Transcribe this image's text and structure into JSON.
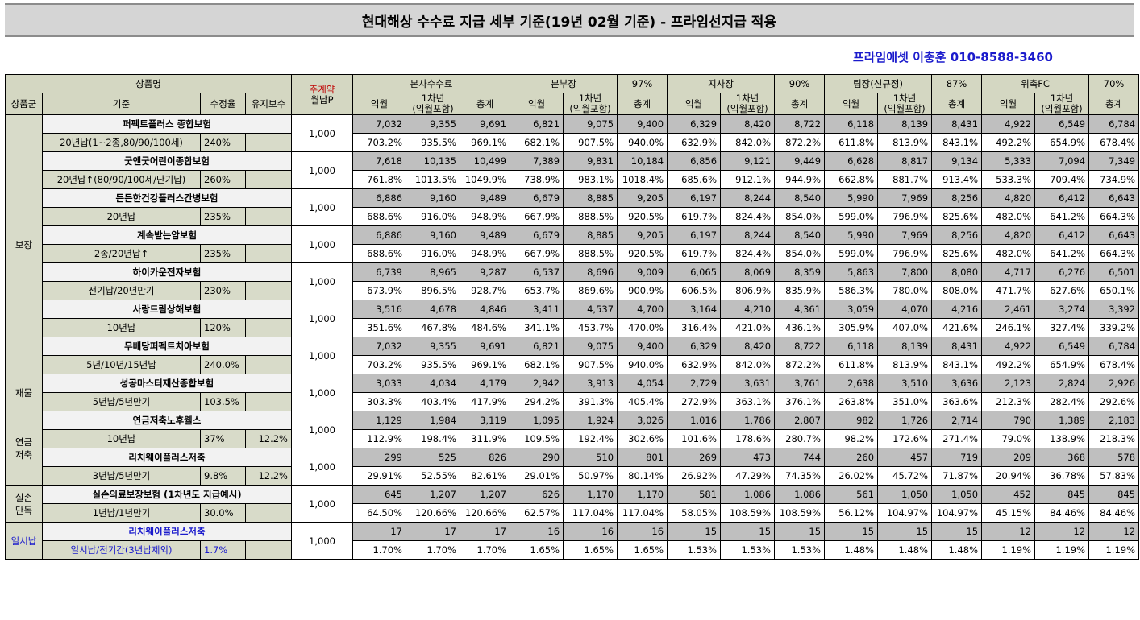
{
  "title": "현대해상 수수료 지급 세부 기준(19년 02월 기준) - 프라임선지급 적용",
  "contact": "프라임에셋 이충훈 010-8588-3460",
  "header": {
    "product_name": "상품명",
    "product_group": "상품군",
    "basis": "기준",
    "modify_rate": "수정율",
    "maintain_fee": "유지보수",
    "main_contract_line1": "주계약",
    "main_contract_line2": "월납P",
    "sections": [
      {
        "label": "본사수수료",
        "pct": ""
      },
      {
        "label": "본부장",
        "pct": "97%"
      },
      {
        "label": "지사장",
        "pct": "90%"
      },
      {
        "label": "팀장(신규정)",
        "pct": "87%"
      },
      {
        "label": "위촉FC",
        "pct": "70%"
      }
    ],
    "sub_first": "익월",
    "sub_year1_line1": "1차년",
    "sub_year1_line2": "(익월포함)",
    "sub_total": "총계"
  },
  "groups": [
    {
      "name_lines": [
        "보장"
      ],
      "blue": false,
      "products": [
        {
          "name": "퍼펙트플러스 종합보험",
          "basis": "20년납(1~2종,80/90/100세)",
          "modify": "240%",
          "maintain": "",
          "premium": "1,000",
          "amounts": [
            "7,032",
            "9,355",
            "9,691",
            "6,821",
            "9,075",
            "9,400",
            "6,329",
            "8,420",
            "8,722",
            "6,118",
            "8,139",
            "8,431",
            "4,922",
            "6,549",
            "6,784"
          ],
          "rates": [
            "703.2%",
            "935.5%",
            "969.1%",
            "682.1%",
            "907.5%",
            "940.0%",
            "632.9%",
            "842.0%",
            "872.2%",
            "611.8%",
            "813.9%",
            "843.1%",
            "492.2%",
            "654.9%",
            "678.4%"
          ]
        },
        {
          "name": "굿앤굿어린이종합보험",
          "basis": "20년납↑(80/90/100세/단기납)",
          "modify": "260%",
          "maintain": "",
          "premium": "1,000",
          "amounts": [
            "7,618",
            "10,135",
            "10,499",
            "7,389",
            "9,831",
            "10,184",
            "6,856",
            "9,121",
            "9,449",
            "6,628",
            "8,817",
            "9,134",
            "5,333",
            "7,094",
            "7,349"
          ],
          "rates": [
            "761.8%",
            "1013.5%",
            "1049.9%",
            "738.9%",
            "983.1%",
            "1018.4%",
            "685.6%",
            "912.1%",
            "944.9%",
            "662.8%",
            "881.7%",
            "913.4%",
            "533.3%",
            "709.4%",
            "734.9%"
          ]
        },
        {
          "name": "든든한건강플러스간병보험",
          "basis": "20년납",
          "modify": "235%",
          "maintain": "",
          "premium": "1,000",
          "amounts": [
            "6,886",
            "9,160",
            "9,489",
            "6,679",
            "8,885",
            "9,205",
            "6,197",
            "8,244",
            "8,540",
            "5,990",
            "7,969",
            "8,256",
            "4,820",
            "6,412",
            "6,643"
          ],
          "rates": [
            "688.6%",
            "916.0%",
            "948.9%",
            "667.9%",
            "888.5%",
            "920.5%",
            "619.7%",
            "824.4%",
            "854.0%",
            "599.0%",
            "796.9%",
            "825.6%",
            "482.0%",
            "641.2%",
            "664.3%"
          ]
        },
        {
          "name": "계속받는암보험",
          "basis": "2종/20년납↑",
          "modify": "235%",
          "maintain": "",
          "premium": "1,000",
          "amounts": [
            "6,886",
            "9,160",
            "9,489",
            "6,679",
            "8,885",
            "9,205",
            "6,197",
            "8,244",
            "8,540",
            "5,990",
            "7,969",
            "8,256",
            "4,820",
            "6,412",
            "6,643"
          ],
          "rates": [
            "688.6%",
            "916.0%",
            "948.9%",
            "667.9%",
            "888.5%",
            "920.5%",
            "619.7%",
            "824.4%",
            "854.0%",
            "599.0%",
            "796.9%",
            "825.6%",
            "482.0%",
            "641.2%",
            "664.3%"
          ]
        },
        {
          "name": "하이카운전자보험",
          "basis": "전기납/20년만기",
          "modify": "230%",
          "maintain": "",
          "premium": "1,000",
          "amounts": [
            "6,739",
            "8,965",
            "9,287",
            "6,537",
            "8,696",
            "9,009",
            "6,065",
            "8,069",
            "8,359",
            "5,863",
            "7,800",
            "8,080",
            "4,717",
            "6,276",
            "6,501"
          ],
          "rates": [
            "673.9%",
            "896.5%",
            "928.7%",
            "653.7%",
            "869.6%",
            "900.9%",
            "606.5%",
            "806.9%",
            "835.9%",
            "586.3%",
            "780.0%",
            "808.0%",
            "471.7%",
            "627.6%",
            "650.1%"
          ]
        },
        {
          "name": "사랑드림상해보험",
          "basis": "10년납",
          "modify": "120%",
          "maintain": "",
          "premium": "1,000",
          "amounts": [
            "3,516",
            "4,678",
            "4,846",
            "3,411",
            "4,537",
            "4,700",
            "3,164",
            "4,210",
            "4,361",
            "3,059",
            "4,070",
            "4,216",
            "2,461",
            "3,274",
            "3,392"
          ],
          "rates": [
            "351.6%",
            "467.8%",
            "484.6%",
            "341.1%",
            "453.7%",
            "470.0%",
            "316.4%",
            "421.0%",
            "436.1%",
            "305.9%",
            "407.0%",
            "421.6%",
            "246.1%",
            "327.4%",
            "339.2%"
          ]
        },
        {
          "name": "무배당퍼펙트치아보험",
          "basis": "5년/10년/15년납",
          "modify": "240.0%",
          "maintain": "",
          "premium": "1,000",
          "amounts": [
            "7,032",
            "9,355",
            "9,691",
            "6,821",
            "9,075",
            "9,400",
            "6,329",
            "8,420",
            "8,722",
            "6,118",
            "8,139",
            "8,431",
            "4,922",
            "6,549",
            "6,784"
          ],
          "rates": [
            "703.2%",
            "935.5%",
            "969.1%",
            "682.1%",
            "907.5%",
            "940.0%",
            "632.9%",
            "842.0%",
            "872.2%",
            "611.8%",
            "813.9%",
            "843.1%",
            "492.2%",
            "654.9%",
            "678.4%"
          ]
        }
      ]
    },
    {
      "name_lines": [
        "재물"
      ],
      "blue": false,
      "products": [
        {
          "name": "성공마스터재산종합보험",
          "basis": "5년납/5년만기",
          "modify": "103.5%",
          "maintain": "",
          "premium": "1,000",
          "amounts": [
            "3,033",
            "4,034",
            "4,179",
            "2,942",
            "3,913",
            "4,054",
            "2,729",
            "3,631",
            "3,761",
            "2,638",
            "3,510",
            "3,636",
            "2,123",
            "2,824",
            "2,926"
          ],
          "rates": [
            "303.3%",
            "403.4%",
            "417.9%",
            "294.2%",
            "391.3%",
            "405.4%",
            "272.9%",
            "363.1%",
            "376.1%",
            "263.8%",
            "351.0%",
            "363.6%",
            "212.3%",
            "282.4%",
            "292.6%"
          ]
        }
      ]
    },
    {
      "name_lines": [
        "연금",
        "저축"
      ],
      "blue": false,
      "products": [
        {
          "name": "연금저축노후웰스",
          "basis": "10년납",
          "modify": "37%",
          "maintain": "12.2%",
          "premium": "1,000",
          "amounts": [
            "1,129",
            "1,984",
            "3,119",
            "1,095",
            "1,924",
            "3,026",
            "1,016",
            "1,786",
            "2,807",
            "982",
            "1,726",
            "2,714",
            "790",
            "1,389",
            "2,183"
          ],
          "rates": [
            "112.9%",
            "198.4%",
            "311.9%",
            "109.5%",
            "192.4%",
            "302.6%",
            "101.6%",
            "178.6%",
            "280.7%",
            "98.2%",
            "172.6%",
            "271.4%",
            "79.0%",
            "138.9%",
            "218.3%"
          ]
        },
        {
          "name": "리치웨이플러스저축",
          "basis": "3년납/5년만기",
          "modify": "9.8%",
          "maintain": "12.2%",
          "premium": "1,000",
          "amounts": [
            "299",
            "525",
            "826",
            "290",
            "510",
            "801",
            "269",
            "473",
            "744",
            "260",
            "457",
            "719",
            "209",
            "368",
            "578"
          ],
          "rates": [
            "29.91%",
            "52.55%",
            "82.61%",
            "29.01%",
            "50.97%",
            "80.14%",
            "26.92%",
            "47.29%",
            "74.35%",
            "26.02%",
            "45.72%",
            "71.87%",
            "20.94%",
            "36.78%",
            "57.83%"
          ]
        }
      ]
    },
    {
      "name_lines": [
        "실손",
        "단독"
      ],
      "blue": false,
      "products": [
        {
          "name": "실손의료보장보험 (1차년도 지급예시)",
          "basis": "1년납/1년만기",
          "modify": "30.0%",
          "maintain": "",
          "premium": "1,000",
          "amounts": [
            "645",
            "1,207",
            "1,207",
            "626",
            "1,170",
            "1,170",
            "581",
            "1,086",
            "1,086",
            "561",
            "1,050",
            "1,050",
            "452",
            "845",
            "845"
          ],
          "rates": [
            "64.50%",
            "120.66%",
            "120.66%",
            "62.57%",
            "117.04%",
            "117.04%",
            "58.05%",
            "108.59%",
            "108.59%",
            "56.12%",
            "104.97%",
            "104.97%",
            "45.15%",
            "84.46%",
            "84.46%"
          ]
        }
      ]
    },
    {
      "name_lines": [
        "일시납"
      ],
      "blue": true,
      "products": [
        {
          "name": "리치웨이플러스저축",
          "basis": "일시납/전기간(3년납제외)",
          "modify": "1.7%",
          "maintain": "",
          "premium": "1,000",
          "amounts": [
            "17",
            "17",
            "17",
            "16",
            "16",
            "16",
            "15",
            "15",
            "15",
            "15",
            "15",
            "15",
            "12",
            "12",
            "12"
          ],
          "rates": [
            "1.70%",
            "1.70%",
            "1.70%",
            "1.65%",
            "1.65%",
            "1.65%",
            "1.53%",
            "1.53%",
            "1.53%",
            "1.48%",
            "1.48%",
            "1.48%",
            "1.19%",
            "1.19%",
            "1.19%"
          ]
        }
      ]
    }
  ]
}
